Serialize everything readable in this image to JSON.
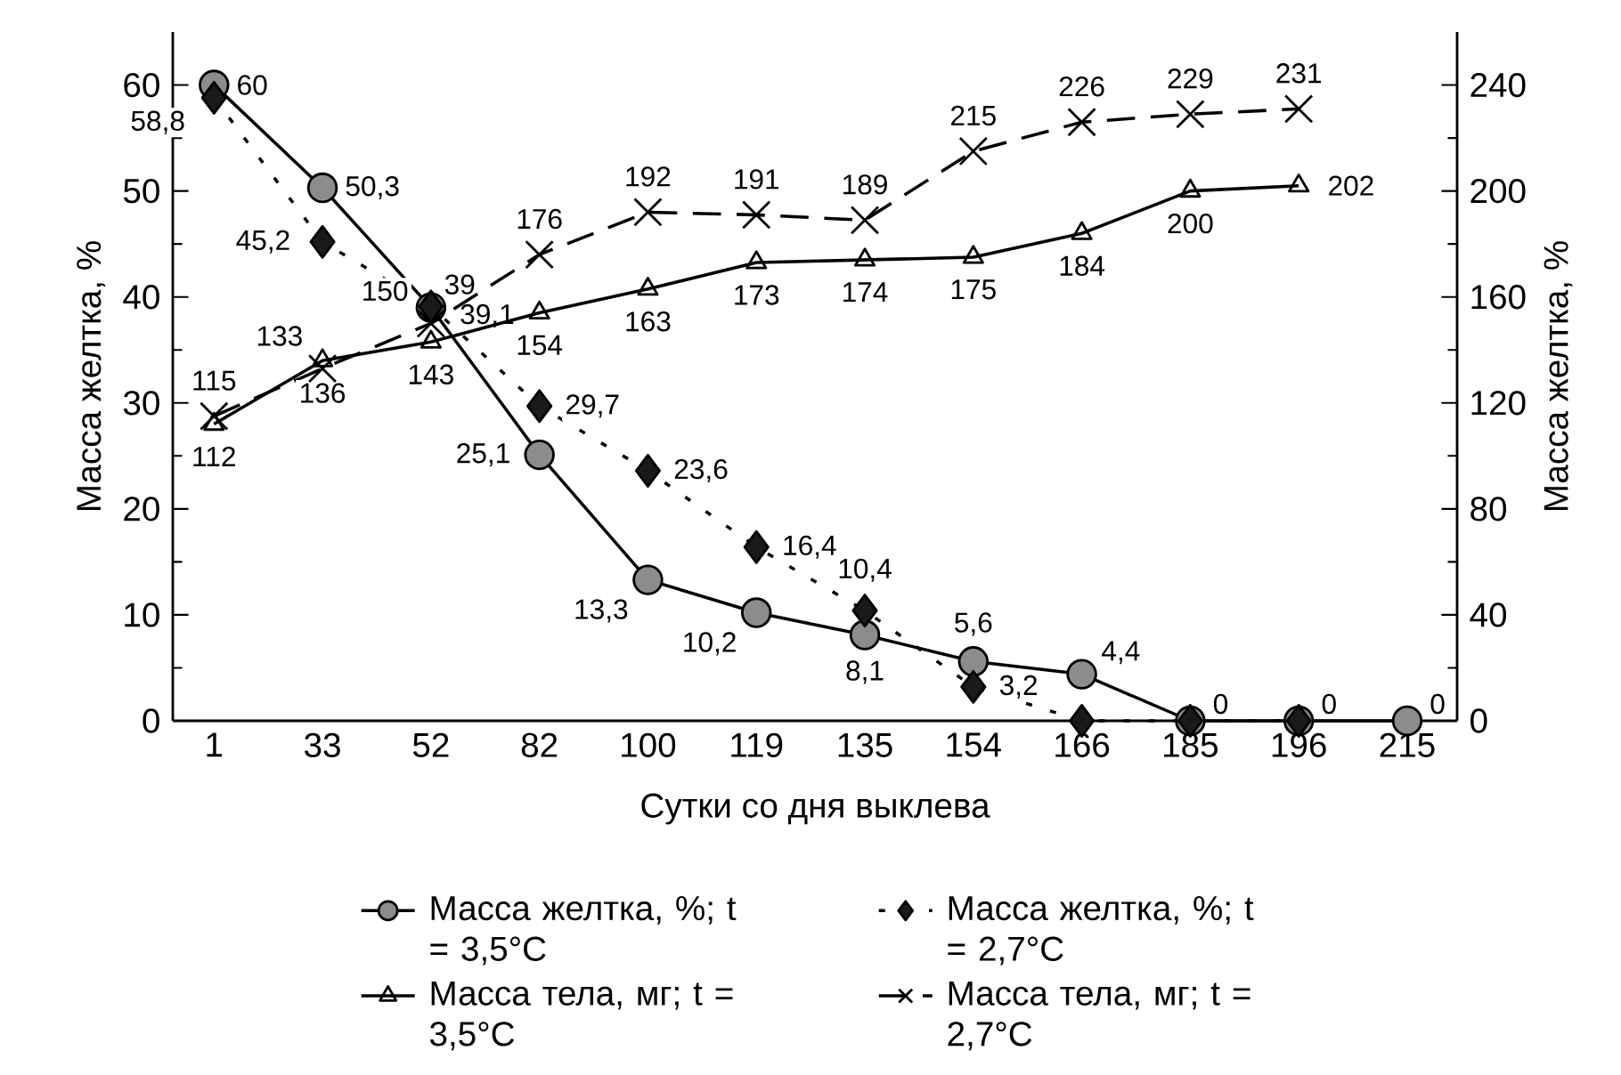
{
  "chart_data": {
    "type": "line",
    "xlabel": "Сутки со дня выклева",
    "ylabel": "Масса желтка, %",
    "y2label": "Масса желтка, %",
    "categories": [
      "1",
      "33",
      "52",
      "82",
      "100",
      "119",
      "135",
      "154",
      "166",
      "185",
      "196",
      "215"
    ],
    "ylim": [
      0,
      65
    ],
    "yticks": [
      0,
      10,
      20,
      30,
      40,
      50,
      60
    ],
    "y2lim": [
      0,
      260
    ],
    "y2ticks": [
      0,
      40,
      80,
      120,
      160,
      200,
      240
    ],
    "grid": false,
    "legend": "bottom",
    "series": [
      {
        "name": "Масса желтка, %; t = 3,5°C",
        "color": "#8c8c8c",
        "marker": "circle",
        "line_style": "solid",
        "values": [
          60,
          50.3,
          39,
          25.1,
          13.3,
          10.2,
          8.1,
          5.6,
          4.4,
          0,
          0,
          0
        ],
        "value_labels": [
          "60",
          "50,3",
          "39",
          "25,1",
          "13,3",
          "10,2",
          "8,1",
          "5,6",
          "4,4",
          "0",
          "0",
          "0"
        ]
      },
      {
        "name": "Масса желтка, %; t = 2,7°C",
        "color": "#1a1a1a",
        "marker": "diamond",
        "line_style": "dotted",
        "values": [
          58.8,
          45.2,
          39.1,
          29.7,
          23.6,
          16.4,
          10.4,
          3.2,
          0,
          0,
          0,
          null
        ],
        "value_labels": [
          "58,8",
          "45,2",
          "39,1",
          "29,7",
          "23,6",
          "16,4",
          "10,4",
          "3,2",
          null,
          null,
          null,
          null
        ]
      },
      {
        "name": "Масса тела, мг; t = 3,5°C",
        "color": "#000000",
        "marker": "triangle",
        "line_style": "solid",
        "axis": "y2",
        "values": [
          112,
          136,
          143,
          154,
          163,
          173,
          174,
          175,
          184,
          200,
          202,
          null
        ],
        "value_labels": [
          "112",
          "136",
          "143",
          "154",
          "163",
          "173",
          "174",
          "175",
          "184",
          "200",
          "202",
          null
        ]
      },
      {
        "name": "Масса тела, мг; t = 2,7°C",
        "color": "#000000",
        "marker": "cross",
        "line_style": "dashed",
        "axis": "y2",
        "values": [
          115,
          133,
          150,
          176,
          192,
          191,
          189,
          215,
          226,
          229,
          231,
          null
        ],
        "value_labels": [
          "115",
          "133",
          "150",
          "176",
          "192",
          "191",
          "189",
          "215",
          "226",
          "229",
          "231",
          null
        ]
      }
    ]
  }
}
